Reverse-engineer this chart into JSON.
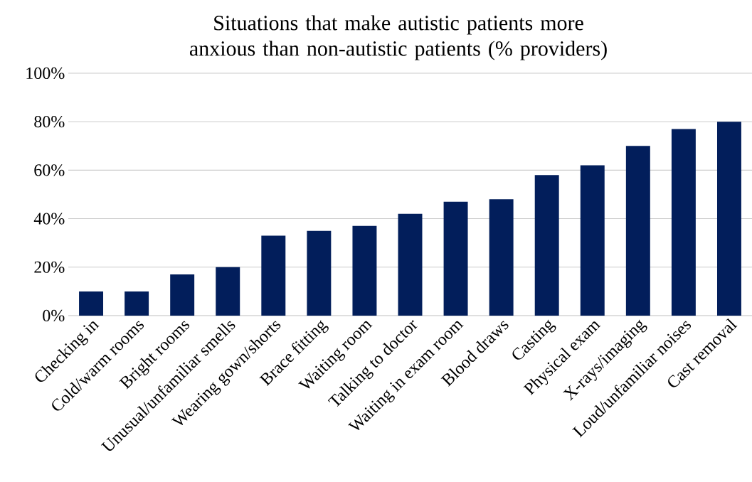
{
  "chart_data": {
    "type": "bar",
    "title": "Situations that make autistic patients more anxious than non-autistic patients (% providers)",
    "categories": [
      "Checking in",
      "Cold/warm rooms",
      "Bright rooms",
      "Unusual/unfamiliar smells",
      "Wearing gown/shorts",
      "Brace fitting",
      "Waiting room",
      "Talking to doctor",
      "Waiting in exam room",
      "Blood draws",
      "Casting",
      "Physical exam",
      "X-rays/imaging",
      "Loud/unfamiliar noises",
      "Cast removal"
    ],
    "values": [
      10,
      10,
      17,
      20,
      33,
      35,
      37,
      42,
      47,
      48,
      58,
      62,
      70,
      77,
      80
    ],
    "color": "#021e5b",
    "ylim": [
      0,
      100
    ],
    "yticks": [
      {
        "value": 0,
        "label": "0%"
      },
      {
        "value": 20,
        "label": "20%"
      },
      {
        "value": 40,
        "label": "40%"
      },
      {
        "value": 60,
        "label": "60%"
      },
      {
        "value": 80,
        "label": "80%"
      },
      {
        "value": 100,
        "label": "100%"
      }
    ],
    "grid": "y"
  }
}
